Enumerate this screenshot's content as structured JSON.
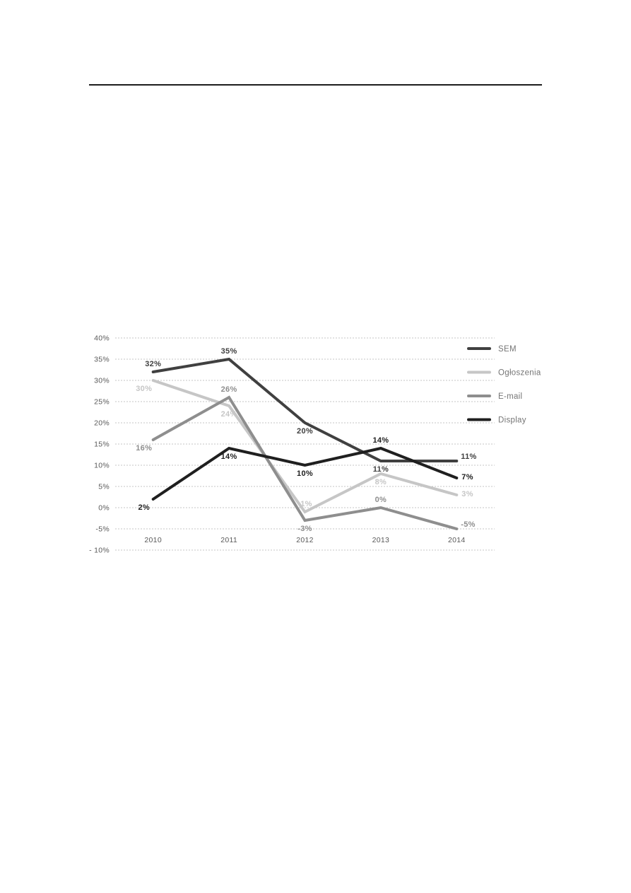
{
  "page": {
    "background": "#ffffff"
  },
  "header_rule": {
    "color": "#1c1c1c"
  },
  "chart_data": {
    "type": "line",
    "categories": [
      "2010",
      "2011",
      "2012",
      "2013",
      "2014"
    ],
    "series": [
      {
        "name": "SEM",
        "color": "#404040",
        "values": [
          32,
          35,
          20,
          11,
          11
        ],
        "point_labels": [
          "32%",
          "35%",
          "20%",
          "11%",
          "11%"
        ],
        "label_placements": [
          "above",
          "above",
          "below",
          "below",
          "right-above"
        ]
      },
      {
        "name": "Ogłoszenia",
        "color": "#c6c6c6",
        "values": [
          30,
          24,
          -1,
          8,
          3
        ],
        "point_labels": [
          "30%",
          "24%",
          "-1%",
          "8%",
          "3%"
        ],
        "label_placements": [
          "below-left",
          "below",
          "above",
          "below",
          "right"
        ]
      },
      {
        "name": "E-mail",
        "color": "#8e8e8e",
        "values": [
          16,
          26,
          -3,
          0,
          -5
        ],
        "point_labels": [
          "16%",
          "26%",
          "-3%",
          "0%",
          "-5%"
        ],
        "label_placements": [
          "below-left",
          "above",
          "below",
          "above",
          "right-above"
        ]
      },
      {
        "name": "Display",
        "color": "#1f1f1f",
        "values": [
          2,
          14,
          10,
          14,
          7
        ],
        "point_labels": [
          "2%",
          "14%",
          "10%",
          "14%",
          "7%"
        ],
        "label_placements": [
          "below-left",
          "below",
          "below",
          "above",
          "right"
        ]
      }
    ],
    "y_axis": {
      "min": -10,
      "max": 40,
      "step": 5,
      "label_color": "#595959",
      "ticks": [
        {
          "value": 40,
          "label": "40%"
        },
        {
          "value": 35,
          "label": "35%"
        },
        {
          "value": 30,
          "label": "30%"
        },
        {
          "value": 25,
          "label": "25%"
        },
        {
          "value": 20,
          "label": "20%"
        },
        {
          "value": 15,
          "label": "15%"
        },
        {
          "value": 10,
          "label": "10%"
        },
        {
          "value": 5,
          "label": "5%"
        },
        {
          "value": 0,
          "label": "0%"
        },
        {
          "value": -5,
          "label": "-5%"
        },
        {
          "value": -10,
          "label": "- 10%"
        }
      ]
    },
    "x_axis": {
      "label_color": "#595959"
    },
    "grid": {
      "style": "dashed",
      "color": "#c4c4c4"
    },
    "legend": {
      "position": "right",
      "text_color": "#757575",
      "entries": [
        "SEM",
        "Ogłoszenia",
        "E-mail",
        "Display"
      ]
    }
  }
}
